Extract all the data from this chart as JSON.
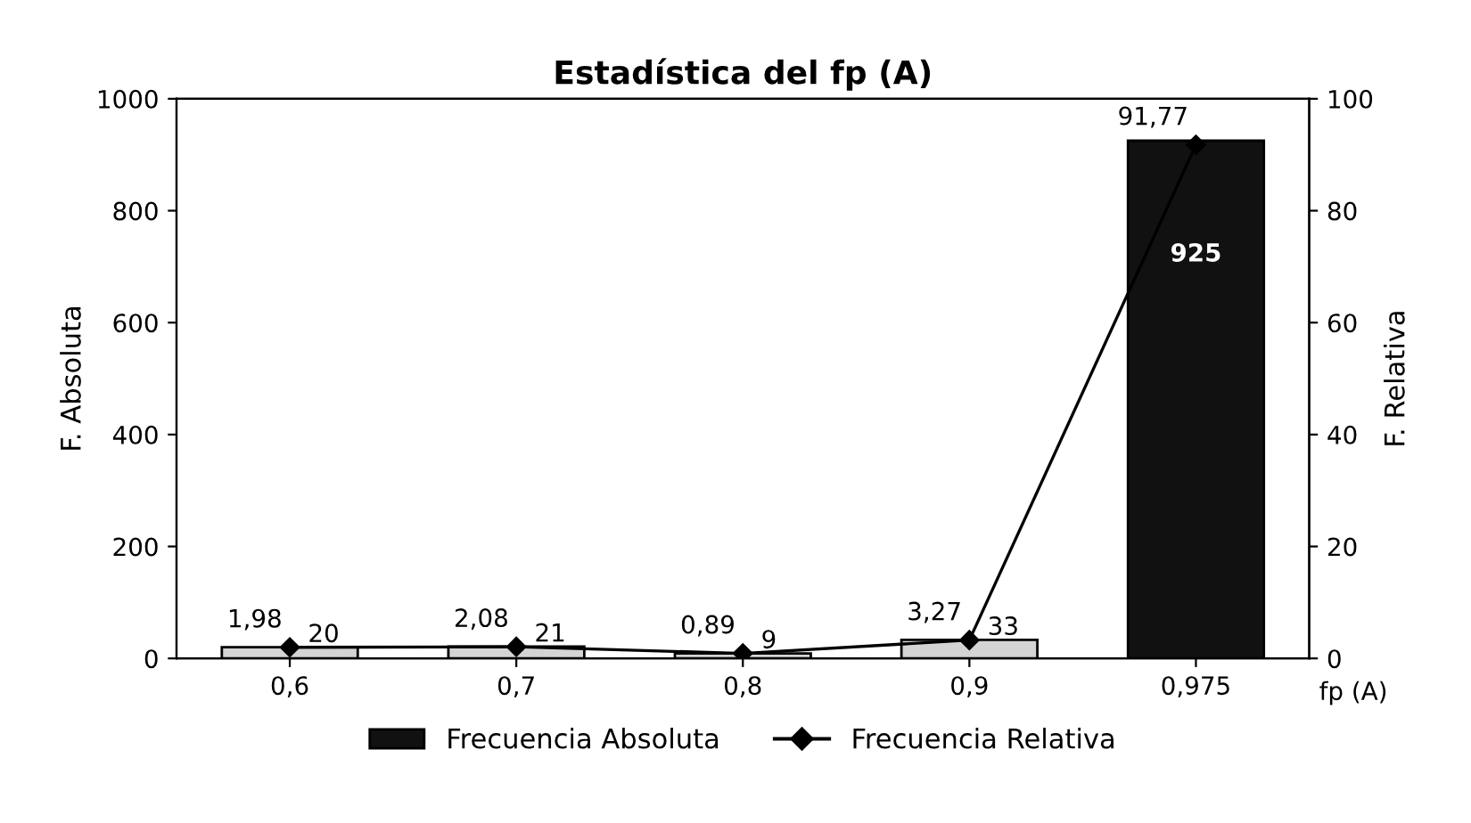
{
  "chart_data": {
    "type": "bar",
    "title": "Estadística del fp (A)",
    "xlabel": "fp (A)",
    "ylabel": "F. Absoluta",
    "y2label": "F. Relativa",
    "categories": [
      "0,6",
      "0,7",
      "0,8",
      "0,9",
      "0,975"
    ],
    "series": [
      {
        "name": "Frecuencia Absoluta",
        "colors": [
          "#d4d4d4",
          "#d4d4d4",
          "#d4d4d4",
          "#d4d4d4",
          "#111111"
        ],
        "color": "#111111",
        "values": [
          20,
          21,
          9,
          33,
          925
        ],
        "data_labels": true
      },
      {
        "name": "Frecuencia Relativa",
        "type": "line",
        "axis": "y2",
        "color": "#000000",
        "marker": "diamond",
        "line_style": "solid",
        "values": [
          1.98,
          2.08,
          0.89,
          3.27,
          91.77
        ],
        "value_labels": [
          "1,98",
          "2,08",
          "0,89",
          "3,27",
          "91,77"
        ]
      }
    ],
    "ylim": [
      0,
      1000
    ],
    "yticks": [
      0,
      200,
      400,
      600,
      800,
      1000
    ],
    "y2lim": [
      0,
      100
    ],
    "y2ticks": [
      0,
      20,
      40,
      60,
      80,
      100
    ],
    "grid": false,
    "legend": "bottom"
  }
}
